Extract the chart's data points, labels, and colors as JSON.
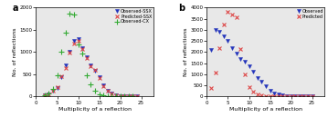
{
  "panel_a": {
    "observed_ssx_x": [
      2,
      3,
      4,
      5,
      6,
      7,
      8,
      9,
      10,
      11,
      12,
      13,
      14,
      15,
      16,
      17,
      18,
      19,
      20,
      21,
      22,
      23,
      24
    ],
    "observed_ssx_y": [
      20,
      50,
      130,
      200,
      430,
      700,
      1000,
      1250,
      1300,
      1100,
      880,
      700,
      580,
      430,
      250,
      130,
      60,
      30,
      15,
      8,
      4,
      2,
      1
    ],
    "predicted_ssx_x": [
      2,
      3,
      4,
      5,
      6,
      7,
      8,
      9,
      10,
      11,
      12,
      13,
      14,
      15,
      16,
      17,
      18,
      19,
      20,
      21,
      22,
      23,
      24
    ],
    "predicted_ssx_y": [
      25,
      55,
      140,
      210,
      450,
      650,
      990,
      1200,
      1260,
      1060,
      870,
      680,
      600,
      420,
      240,
      140,
      65,
      32,
      18,
      9,
      4,
      2,
      1
    ],
    "observed_cx_x": [
      2,
      3,
      4,
      5,
      6,
      7,
      8,
      9,
      10,
      11,
      12,
      13,
      14,
      15,
      16,
      17,
      18,
      19,
      20,
      21,
      22,
      23
    ],
    "observed_cx_y": [
      30,
      60,
      180,
      480,
      1000,
      1440,
      1860,
      1850,
      1180,
      960,
      480,
      280,
      130,
      50,
      20,
      8,
      3,
      2,
      1,
      1,
      1,
      0
    ],
    "ylabel": "No. of reflections",
    "xlabel": "Multiplicity of a reflection",
    "label": "a",
    "xlim": [
      0,
      28
    ],
    "ylim": [
      0,
      2000
    ],
    "yticks": [
      0,
      500,
      1000,
      1500,
      2000
    ],
    "xticks": [
      0,
      5,
      10,
      15,
      20,
      25
    ]
  },
  "panel_b": {
    "observed_x": [
      1,
      2,
      3,
      4,
      5,
      6,
      7,
      8,
      9,
      10,
      11,
      12,
      13,
      14,
      15,
      16,
      17,
      18,
      19,
      20,
      21,
      22,
      23,
      24,
      25
    ],
    "observed_y": [
      2100,
      3000,
      2900,
      2700,
      2500,
      2200,
      1950,
      1700,
      1550,
      1350,
      1100,
      850,
      650,
      450,
      250,
      130,
      80,
      50,
      30,
      20,
      12,
      7,
      4,
      2,
      1
    ],
    "predicted_x": [
      1,
      2,
      3,
      4,
      5,
      6,
      7,
      8,
      9,
      10,
      11,
      12,
      13,
      14,
      15,
      16,
      17,
      18,
      19,
      20,
      21,
      22,
      23,
      24,
      25
    ],
    "predicted_y": [
      380,
      1080,
      2200,
      3250,
      3820,
      3700,
      3580,
      2150,
      1000,
      430,
      220,
      100,
      50,
      20,
      8,
      3,
      1,
      1,
      0,
      0,
      0,
      0,
      0,
      0,
      0
    ],
    "ylabel": "No. of reflections",
    "xlabel": "Multiplicity of a reflection",
    "label": "b",
    "xlim": [
      0,
      28
    ],
    "ylim": [
      0,
      4000
    ],
    "yticks": [
      0,
      500,
      1000,
      1500,
      2000,
      2500,
      3000,
      3500,
      4000
    ],
    "xticks": [
      0,
      5,
      10,
      15,
      20,
      25
    ]
  },
  "obs_ssx_color": "#2233bb",
  "pred_ssx_color": "#dd4444",
  "obs_cx_color": "#33aa33",
  "obs_color": "#2233bb",
  "pred_color": "#dd4444",
  "bg_color": "#e8e8e8",
  "marker_size": 3.0
}
